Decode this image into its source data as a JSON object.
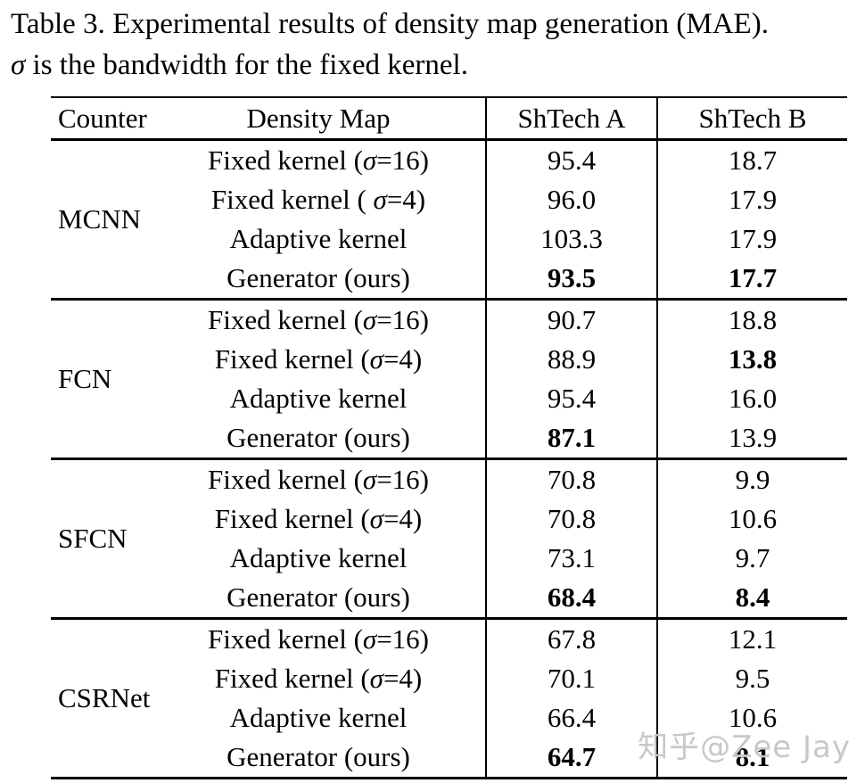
{
  "caption": {
    "line1": "Table 3. Experimental results of density map generation (MAE).",
    "sigma": "σ",
    "line2_rest": " is the bandwidth for the fixed kernel."
  },
  "table": {
    "columns": [
      "Counter",
      "Density Map",
      "ShTech A",
      "ShTech B"
    ],
    "groups": [
      {
        "counter": "MCNN",
        "rows": [
          {
            "density_map": "Fixed kernel (σ=16)",
            "shtech_a": {
              "value": "95.4",
              "bold": false
            },
            "shtech_b": {
              "value": "18.7",
              "bold": false
            }
          },
          {
            "density_map": "Fixed kernel ( σ=4)",
            "shtech_a": {
              "value": "96.0",
              "bold": false
            },
            "shtech_b": {
              "value": "17.9",
              "bold": false
            }
          },
          {
            "density_map": "Adaptive kernel",
            "shtech_a": {
              "value": "103.3",
              "bold": false
            },
            "shtech_b": {
              "value": "17.9",
              "bold": false
            }
          },
          {
            "density_map": "Generator (ours)",
            "shtech_a": {
              "value": "93.5",
              "bold": true
            },
            "shtech_b": {
              "value": "17.7",
              "bold": true
            }
          }
        ]
      },
      {
        "counter": "FCN",
        "rows": [
          {
            "density_map": "Fixed kernel (σ=16)",
            "shtech_a": {
              "value": "90.7",
              "bold": false
            },
            "shtech_b": {
              "value": "18.8",
              "bold": false
            }
          },
          {
            "density_map": "Fixed kernel (σ=4)",
            "shtech_a": {
              "value": "88.9",
              "bold": false
            },
            "shtech_b": {
              "value": "13.8",
              "bold": true
            }
          },
          {
            "density_map": "Adaptive kernel",
            "shtech_a": {
              "value": "95.4",
              "bold": false
            },
            "shtech_b": {
              "value": "16.0",
              "bold": false
            }
          },
          {
            "density_map": "Generator (ours)",
            "shtech_a": {
              "value": "87.1",
              "bold": true
            },
            "shtech_b": {
              "value": "13.9",
              "bold": false
            }
          }
        ]
      },
      {
        "counter": "SFCN",
        "rows": [
          {
            "density_map": "Fixed kernel (σ=16)",
            "shtech_a": {
              "value": "70.8",
              "bold": false
            },
            "shtech_b": {
              "value": "9.9",
              "bold": false
            }
          },
          {
            "density_map": "Fixed kernel (σ=4)",
            "shtech_a": {
              "value": "70.8",
              "bold": false
            },
            "shtech_b": {
              "value": "10.6",
              "bold": false
            }
          },
          {
            "density_map": "Adaptive kernel",
            "shtech_a": {
              "value": "73.1",
              "bold": false
            },
            "shtech_b": {
              "value": "9.7",
              "bold": false
            }
          },
          {
            "density_map": "Generator (ours)",
            "shtech_a": {
              "value": "68.4",
              "bold": true
            },
            "shtech_b": {
              "value": "8.4",
              "bold": true
            }
          }
        ]
      },
      {
        "counter": "CSRNet",
        "rows": [
          {
            "density_map": "Fixed kernel (σ=16)",
            "shtech_a": {
              "value": "67.8",
              "bold": false
            },
            "shtech_b": {
              "value": "12.1",
              "bold": false
            }
          },
          {
            "density_map": "Fixed kernel (σ=4)",
            "shtech_a": {
              "value": "70.1",
              "bold": false
            },
            "shtech_b": {
              "value": "9.5",
              "bold": false
            }
          },
          {
            "density_map": "Adaptive kernel",
            "shtech_a": {
              "value": "66.4",
              "bold": false
            },
            "shtech_b": {
              "value": "10.6",
              "bold": false
            }
          },
          {
            "density_map": "Generator (ours)",
            "shtech_a": {
              "value": "64.7",
              "bold": true
            },
            "shtech_b": {
              "value": "8.1",
              "bold": true
            }
          }
        ]
      }
    ]
  },
  "watermark": {
    "text": "知乎@Zee Jay",
    "color": "#c8c8c8"
  }
}
